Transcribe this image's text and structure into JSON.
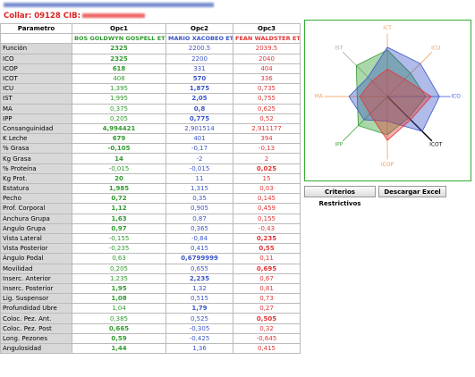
{
  "header": {
    "collar": "Collar: 09128 CIB:"
  },
  "table": {
    "headers": [
      "Parametro",
      "Opc1",
      "Opc2",
      "Opc3"
    ],
    "names": [
      "BOS GOLDWYN GOSPELL ET",
      "MARIO XACOBEO ET",
      "FEAN WALDSTER ET"
    ],
    "colors": [
      "#2e9a2e",
      "#3a55c8",
      "#e03535"
    ],
    "rows": [
      [
        "Función",
        "2325",
        "2200.5",
        "2039.5"
      ],
      [
        "ICO",
        "2325",
        "2200",
        "2040"
      ],
      [
        "ICOP",
        "618",
        "331",
        "404"
      ],
      [
        "ICOT",
        "408",
        "570",
        "336"
      ],
      [
        "ICU",
        "1,395",
        "1,875",
        "0,735"
      ],
      [
        "IST",
        "1,995",
        "2,05",
        "0,755"
      ],
      [
        "MA",
        "0,375",
        "0,8",
        "0,625"
      ],
      [
        "IPP",
        "0,205",
        "0,775",
        "0,52"
      ],
      [
        "Consanguinidad",
        "4,994421",
        "2,901514",
        "2,911177"
      ],
      [
        "K Leche",
        "679",
        "401",
        "394"
      ],
      [
        "% Grasa",
        "-0,105",
        "-0,17",
        "-0,13"
      ],
      [
        "Kg Grasa",
        "14",
        "-2",
        "2"
      ],
      [
        "% Proteína",
        "-0,015",
        "-0,015",
        "0,025"
      ],
      [
        "Kg Prot.",
        "20",
        "11",
        "15"
      ],
      [
        "Estatura",
        "1,985",
        "1,315",
        "0,03"
      ],
      [
        "Pecho",
        "0,72",
        "0,35",
        "0,145"
      ],
      [
        "Prof. Corporal",
        "1,12",
        "0,905",
        "0,459"
      ],
      [
        "Anchura Grupa",
        "1,63",
        "0,87",
        "0,155"
      ],
      [
        "Angulo Grupa",
        "0,97",
        "0,365",
        "-0,43"
      ],
      [
        "Vista Lateral",
        "-0,155",
        "-0,84",
        "0,235"
      ],
      [
        "Vista Posterior",
        "-0,235",
        "0,415",
        "0,55"
      ],
      [
        "Ángulo Podal",
        "0,63",
        "0,6799999",
        "0,11"
      ],
      [
        "Movilidad",
        "0,205",
        "0,655",
        "0,695"
      ],
      [
        "Inserc. Anterior",
        "1,235",
        "2,235",
        "0,67"
      ],
      [
        "Inserc. Posterior",
        "1,95",
        "1,32",
        "0,81"
      ],
      [
        "Lig. Suspensor",
        "1,08",
        "0,515",
        "0,73"
      ],
      [
        "Profundidad Ubre",
        "1,04",
        "1,79",
        "0,27"
      ],
      [
        "Coloc. Pez. Ant.",
        "0,385",
        "0,525",
        "0,505"
      ],
      [
        "Coloc. Pez. Post",
        "0,665",
        "-0,305",
        "0,32"
      ],
      [
        "Long. Pezones",
        "0,59",
        "-0,425",
        "-0,645"
      ],
      [
        "Angulosidad",
        "1,44",
        "1,36",
        "0,415"
      ]
    ],
    "highlight": [
      0,
      0,
      0,
      1,
      1,
      1,
      1,
      1,
      0,
      0,
      0,
      0,
      2,
      0,
      0,
      0,
      0,
      0,
      0,
      2,
      2,
      1,
      2,
      1,
      0,
      0,
      1,
      2,
      0,
      0,
      0
    ]
  },
  "radar": {
    "type": "radar",
    "axes": [
      "ICT",
      "ICU",
      "ICO",
      "ICOT",
      "ICOP",
      "IPP",
      "MA",
      "IST"
    ],
    "axis_colors": [
      "#f0a060",
      "#f0a060",
      "#4466dd",
      "#000000",
      "#f0a060",
      "#44aa44",
      "#f0a060",
      "#aaaaaa"
    ],
    "rlim": [
      0,
      1
    ],
    "series": [
      {
        "name": "Opc1",
        "color": "#2e9a2e",
        "values": [
          0.85,
          0.6,
          0.7,
          0.55,
          0.7,
          0.75,
          0.55,
          0.8
        ]
      },
      {
        "name": "Opc2",
        "color": "#3a55c8",
        "values": [
          0.9,
          0.85,
          0.95,
          0.9,
          0.45,
          0.6,
          0.7,
          0.5
        ]
      },
      {
        "name": "Opc3",
        "color": "#e03535",
        "values": [
          0.5,
          0.45,
          0.8,
          0.6,
          0.8,
          0.45,
          0.5,
          0.4
        ]
      }
    ]
  },
  "buttons": [
    "Criterios Restrictivos",
    "Descargar Excel"
  ]
}
